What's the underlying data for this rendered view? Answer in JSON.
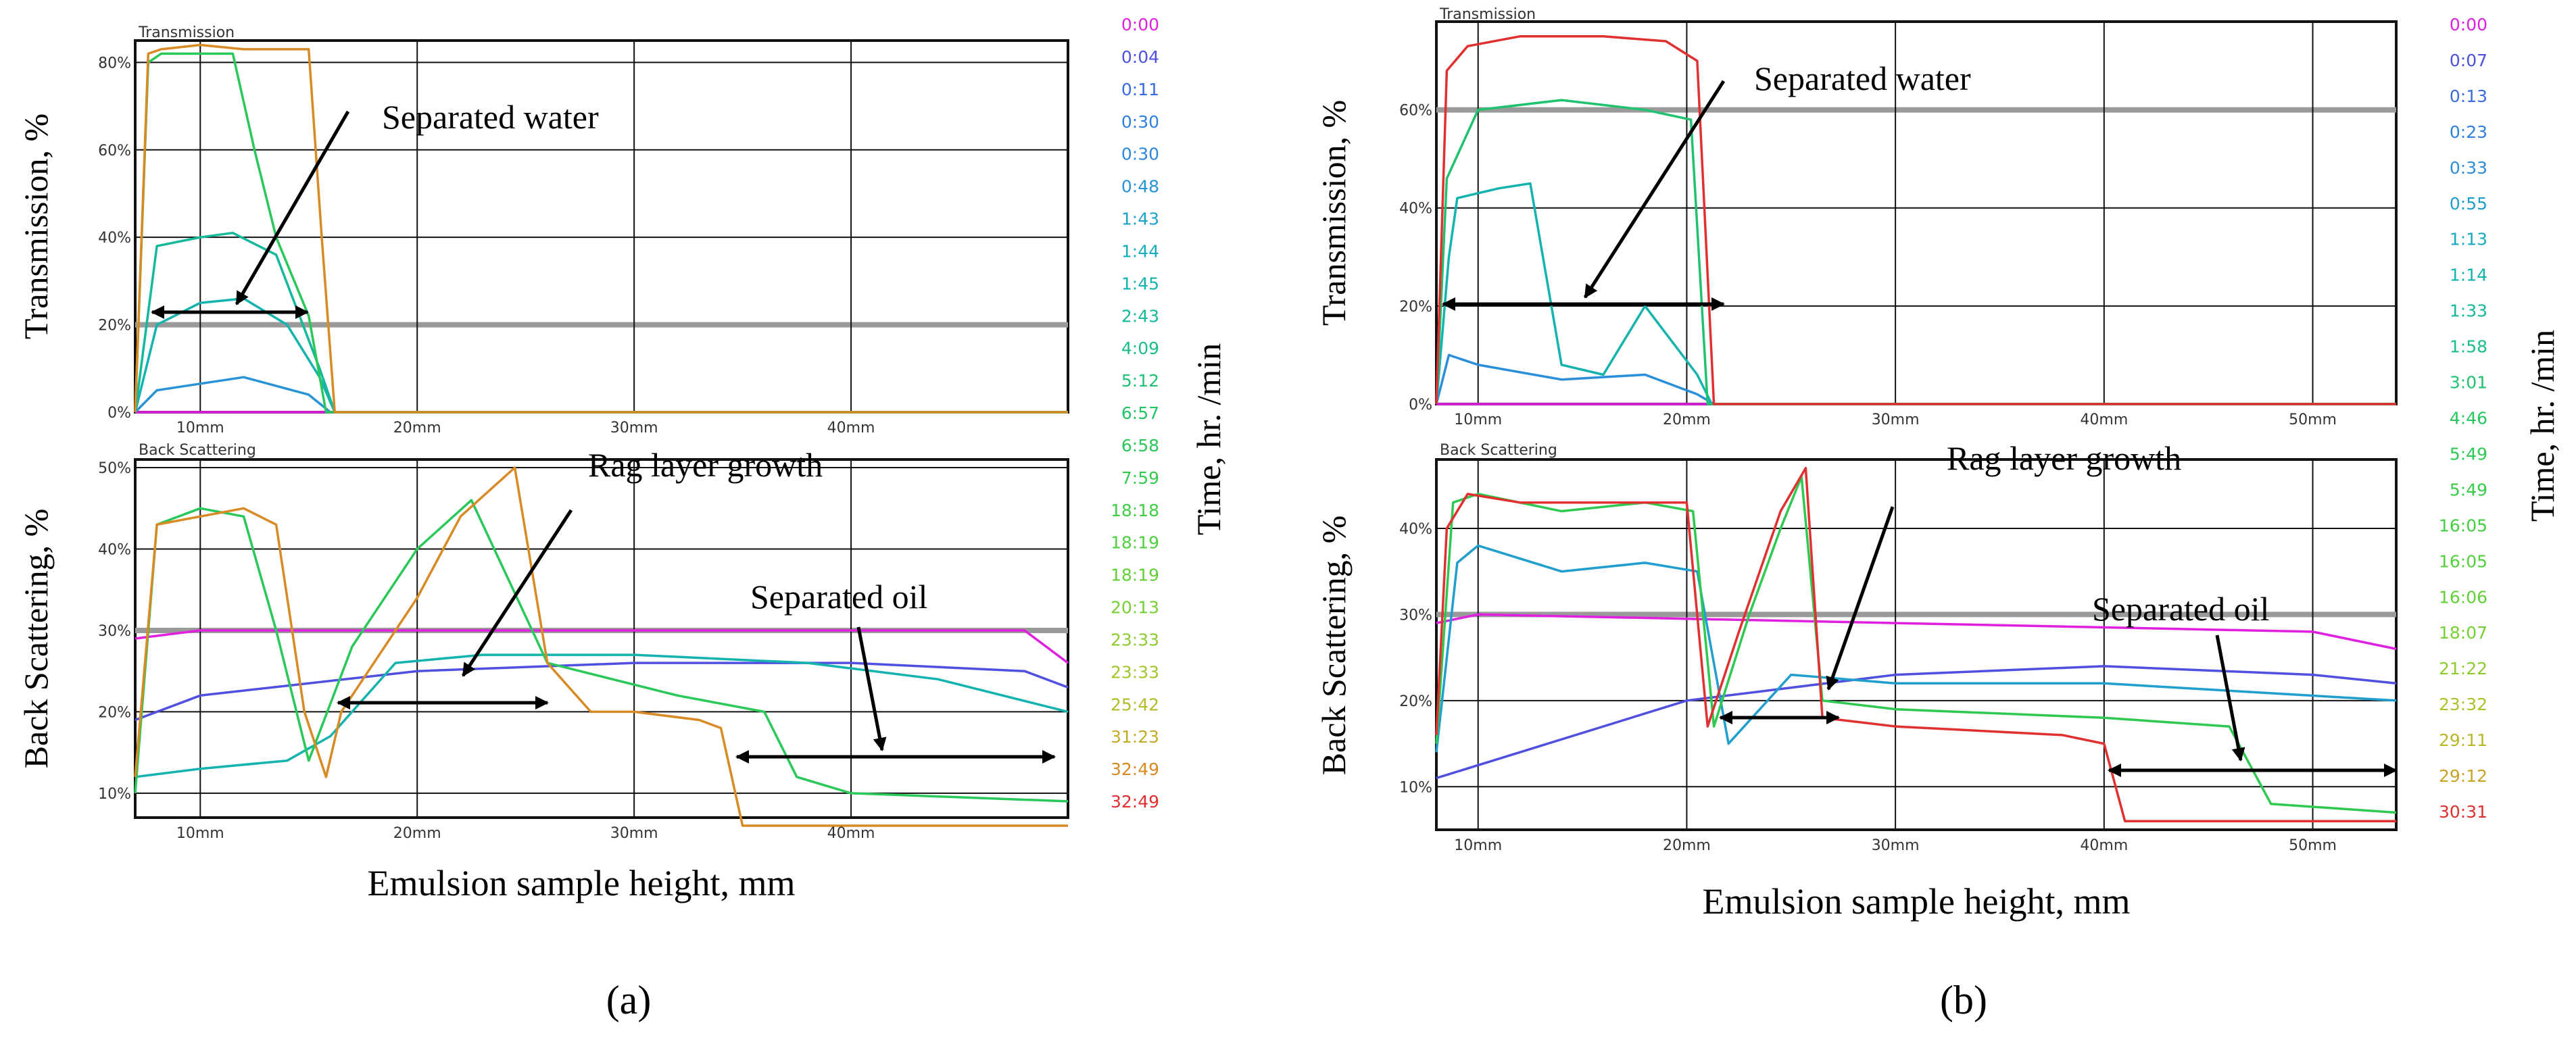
{
  "panels": [
    {
      "id": "a",
      "label": "(a)",
      "top_title": "Transmission",
      "bottom_title": "Back Scattering",
      "top_ylabel": "Transmission, %",
      "bottom_ylabel": "Back Scattering, %",
      "xlabel": "Emulsion sample height, mm",
      "time_label": "Time, hr. /min",
      "top_yticks": [
        "0%",
        "20%",
        "40%",
        "60%",
        "80%"
      ],
      "bottom_yticks": [
        "10%",
        "20%",
        "30%",
        "40%",
        "50%"
      ],
      "xticks": [
        "10mm",
        "20mm",
        "30mm",
        "40mm"
      ],
      "times": [
        "0:00",
        "0:04",
        "0:11",
        "0:30",
        "0:30",
        "0:48",
        "1:43",
        "1:44",
        "1:45",
        "2:43",
        "4:09",
        "5:12",
        "6:57",
        "6:58",
        "7:59",
        "18:18",
        "18:19",
        "18:19",
        "20:13",
        "23:33",
        "23:33",
        "25:42",
        "31:23",
        "32:49",
        "32:49"
      ],
      "time_colors": [
        "#e020e0",
        "#5050e0",
        "#3a6be0",
        "#2f7fe0",
        "#2f86dd",
        "#2894d6",
        "#1da3c9",
        "#16acbc",
        "#14b3ad",
        "#14b89a",
        "#18bd86",
        "#1ec276",
        "#22c566",
        "#2ac85a",
        "#33cb4e",
        "#3fce45",
        "#4ed13e",
        "#62d038",
        "#76cf34",
        "#8ccc30",
        "#a0c72c",
        "#b4bd28",
        "#c2ad24",
        "#d88a24",
        "#e03030"
      ],
      "annotations": {
        "water": "Separated water",
        "rag": "Rag layer growth",
        "oil": "Separated oil"
      }
    },
    {
      "id": "b",
      "label": "(b)",
      "top_title": "Transmission",
      "bottom_title": "Back Scattering",
      "top_ylabel": "Transmission, %",
      "bottom_ylabel": "Back Scattering, %",
      "xlabel": "Emulsion sample height, mm",
      "time_label": "Time, hr. /min",
      "top_yticks": [
        "0%",
        "20%",
        "40%",
        "60%"
      ],
      "bottom_yticks": [
        "10%",
        "20%",
        "30%",
        "40%"
      ],
      "xticks": [
        "10mm",
        "20mm",
        "30mm",
        "40mm",
        "50mm"
      ],
      "times": [
        "0:00",
        "0:07",
        "0:13",
        "0:23",
        "0:33",
        "0:55",
        "1:13",
        "1:14",
        "1:33",
        "1:58",
        "3:01",
        "4:46",
        "5:49",
        "5:49",
        "16:05",
        "16:05",
        "16:06",
        "18:07",
        "21:22",
        "23:32",
        "29:11",
        "29:12",
        "30:31"
      ],
      "time_colors": [
        "#e020e0",
        "#5050e0",
        "#3a6be0",
        "#2f80df",
        "#2a8ed9",
        "#209fcd",
        "#18aabe",
        "#14b3ad",
        "#15b99a",
        "#1bbe83",
        "#20c26f",
        "#27c65f",
        "#2fc952",
        "#38cc4a",
        "#44cf42",
        "#52d13c",
        "#62d038",
        "#78cf34",
        "#90cb30",
        "#a6c42c",
        "#b8b828",
        "#c8a426",
        "#e03030"
      ],
      "annotations": {
        "water": "Separated water",
        "rag": "Rag layer growth",
        "oil": "Separated oil"
      }
    }
  ],
  "chart_data": [
    {
      "type": "line",
      "title": "Transmission",
      "panel": "a",
      "xlabel": "Emulsion sample height, mm",
      "ylabel": "Transmission, %",
      "xlim": [
        7,
        50
      ],
      "ylim": [
        0,
        85
      ],
      "series": [
        {
          "name": "0:00",
          "x": [
            7,
            50
          ],
          "y": [
            0,
            0
          ]
        },
        {
          "name": "0:48",
          "x": [
            7,
            8,
            12,
            15,
            16,
            50
          ],
          "y": [
            0,
            5,
            8,
            4,
            0,
            0
          ]
        },
        {
          "name": "1:45",
          "x": [
            7,
            8,
            10,
            12,
            14,
            15.5,
            16.2,
            50
          ],
          "y": [
            0,
            20,
            25,
            26,
            20,
            8,
            0,
            0
          ]
        },
        {
          "name": "2:43",
          "x": [
            7,
            8,
            10,
            11.5,
            13.5,
            15.5,
            16.2,
            50
          ],
          "y": [
            0,
            38,
            40,
            41,
            36,
            10,
            0,
            0
          ]
        },
        {
          "name": "6:58",
          "x": [
            7,
            7.6,
            8.2,
            11.5,
            12.5,
            13.5,
            15,
            15.8,
            50
          ],
          "y": [
            0,
            80,
            82,
            82,
            60,
            40,
            22,
            0,
            0
          ]
        },
        {
          "name": "32:49",
          "x": [
            7,
            7.6,
            8.2,
            10,
            12,
            15,
            15.6,
            16.2,
            50
          ],
          "y": [
            0,
            82,
            83,
            84,
            83,
            83,
            40,
            0,
            0
          ]
        }
      ]
    },
    {
      "type": "line",
      "title": "Back Scattering",
      "panel": "a",
      "xlabel": "Emulsion sample height, mm",
      "ylabel": "Back Scattering, %",
      "xlim": [
        7,
        50
      ],
      "ylim": [
        7,
        51
      ],
      "series": [
        {
          "name": "0:00",
          "x": [
            7,
            10,
            30,
            48,
            50
          ],
          "y": [
            29,
            30,
            30,
            30,
            26
          ]
        },
        {
          "name": "0:04",
          "x": [
            7,
            10,
            20,
            30,
            40,
            48,
            50
          ],
          "y": [
            19,
            22,
            25,
            26,
            26,
            25,
            23
          ]
        },
        {
          "name": "1:45",
          "x": [
            7,
            10,
            14,
            16,
            19,
            23,
            30,
            38,
            44,
            50
          ],
          "y": [
            12,
            13,
            14,
            17,
            26,
            27,
            27,
            26,
            24,
            20
          ]
        },
        {
          "name": "6:58",
          "x": [
            7,
            8,
            10,
            12,
            13.5,
            15,
            17,
            20,
            22.5,
            26,
            32,
            36,
            37.5,
            40,
            50
          ],
          "y": [
            10,
            43,
            45,
            44,
            30,
            14,
            28,
            40,
            46,
            26,
            22,
            20,
            12,
            10,
            9
          ]
        },
        {
          "name": "32:49",
          "x": [
            7,
            8,
            10,
            12,
            13.5,
            14.8,
            15.8,
            16.5,
            20,
            22,
            24.5,
            26,
            28,
            30,
            33,
            34,
            35,
            40,
            50
          ],
          "y": [
            12,
            43,
            44,
            45,
            43,
            20,
            12,
            20,
            34,
            44,
            50,
            26,
            20,
            20,
            19,
            18,
            6,
            6,
            6
          ]
        }
      ]
    },
    {
      "type": "line",
      "title": "Transmission",
      "panel": "b",
      "xlabel": "Emulsion sample height, mm",
      "ylabel": "Transmission, %",
      "xlim": [
        8,
        54
      ],
      "ylim": [
        0,
        78
      ],
      "series": [
        {
          "name": "0:00",
          "x": [
            8,
            54
          ],
          "y": [
            0,
            0
          ]
        },
        {
          "name": "0:33",
          "x": [
            8,
            8.6,
            10,
            14,
            18,
            20.5,
            21.3,
            54
          ],
          "y": [
            0,
            10,
            8,
            5,
            6,
            2,
            0,
            0
          ]
        },
        {
          "name": "1:14",
          "x": [
            8,
            8.6,
            9,
            11,
            12.5,
            14,
            16,
            18,
            20.5,
            21.2,
            54
          ],
          "y": [
            0,
            30,
            42,
            44,
            45,
            8,
            6,
            20,
            6,
            0,
            0
          ]
        },
        {
          "name": "3:01",
          "x": [
            8,
            8.5,
            10,
            14,
            18,
            20.2,
            21,
            54
          ],
          "y": [
            0,
            46,
            60,
            62,
            60,
            58,
            0,
            0
          ]
        },
        {
          "name": "30:31",
          "x": [
            8,
            8.5,
            9.5,
            12,
            16,
            19,
            20.5,
            21.3,
            54
          ],
          "y": [
            0,
            68,
            73,
            75,
            75,
            74,
            70,
            0,
            0
          ]
        }
      ]
    },
    {
      "type": "line",
      "title": "Back Scattering",
      "panel": "b",
      "xlabel": "Emulsion sample height, mm",
      "ylabel": "Back Scattering, %",
      "xlim": [
        8,
        54
      ],
      "ylim": [
        5,
        48
      ],
      "series": [
        {
          "name": "0:00",
          "x": [
            8,
            10,
            30,
            50,
            54
          ],
          "y": [
            29,
            30,
            29,
            28,
            26
          ]
        },
        {
          "name": "0:07",
          "x": [
            8,
            12,
            20,
            30,
            40,
            50,
            54
          ],
          "y": [
            11,
            14,
            20,
            23,
            24,
            23,
            22
          ]
        },
        {
          "name": "0:55",
          "x": [
            8,
            9,
            10,
            14,
            18,
            20.5,
            22,
            25,
            30,
            40,
            54
          ],
          "y": [
            14,
            36,
            38,
            35,
            36,
            35,
            15,
            23,
            22,
            22,
            20
          ]
        },
        {
          "name": "5:49",
          "x": [
            8,
            8.8,
            10,
            14,
            18,
            20.3,
            21.3,
            23,
            24.5,
            25.5,
            26.5,
            30,
            40,
            46,
            48,
            54
          ],
          "y": [
            15,
            43,
            44,
            42,
            43,
            42,
            17,
            30,
            40,
            46,
            20,
            19,
            18,
            17,
            8,
            7
          ]
        },
        {
          "name": "30:31",
          "x": [
            8,
            8.5,
            9.5,
            12,
            16,
            20,
            21,
            22.5,
            24.5,
            25.7,
            26.5,
            30,
            38,
            40,
            41,
            44,
            54
          ],
          "y": [
            16,
            40,
            44,
            43,
            43,
            43,
            17,
            28,
            42,
            47,
            18,
            17,
            16,
            15,
            6,
            6,
            6
          ]
        }
      ]
    }
  ]
}
